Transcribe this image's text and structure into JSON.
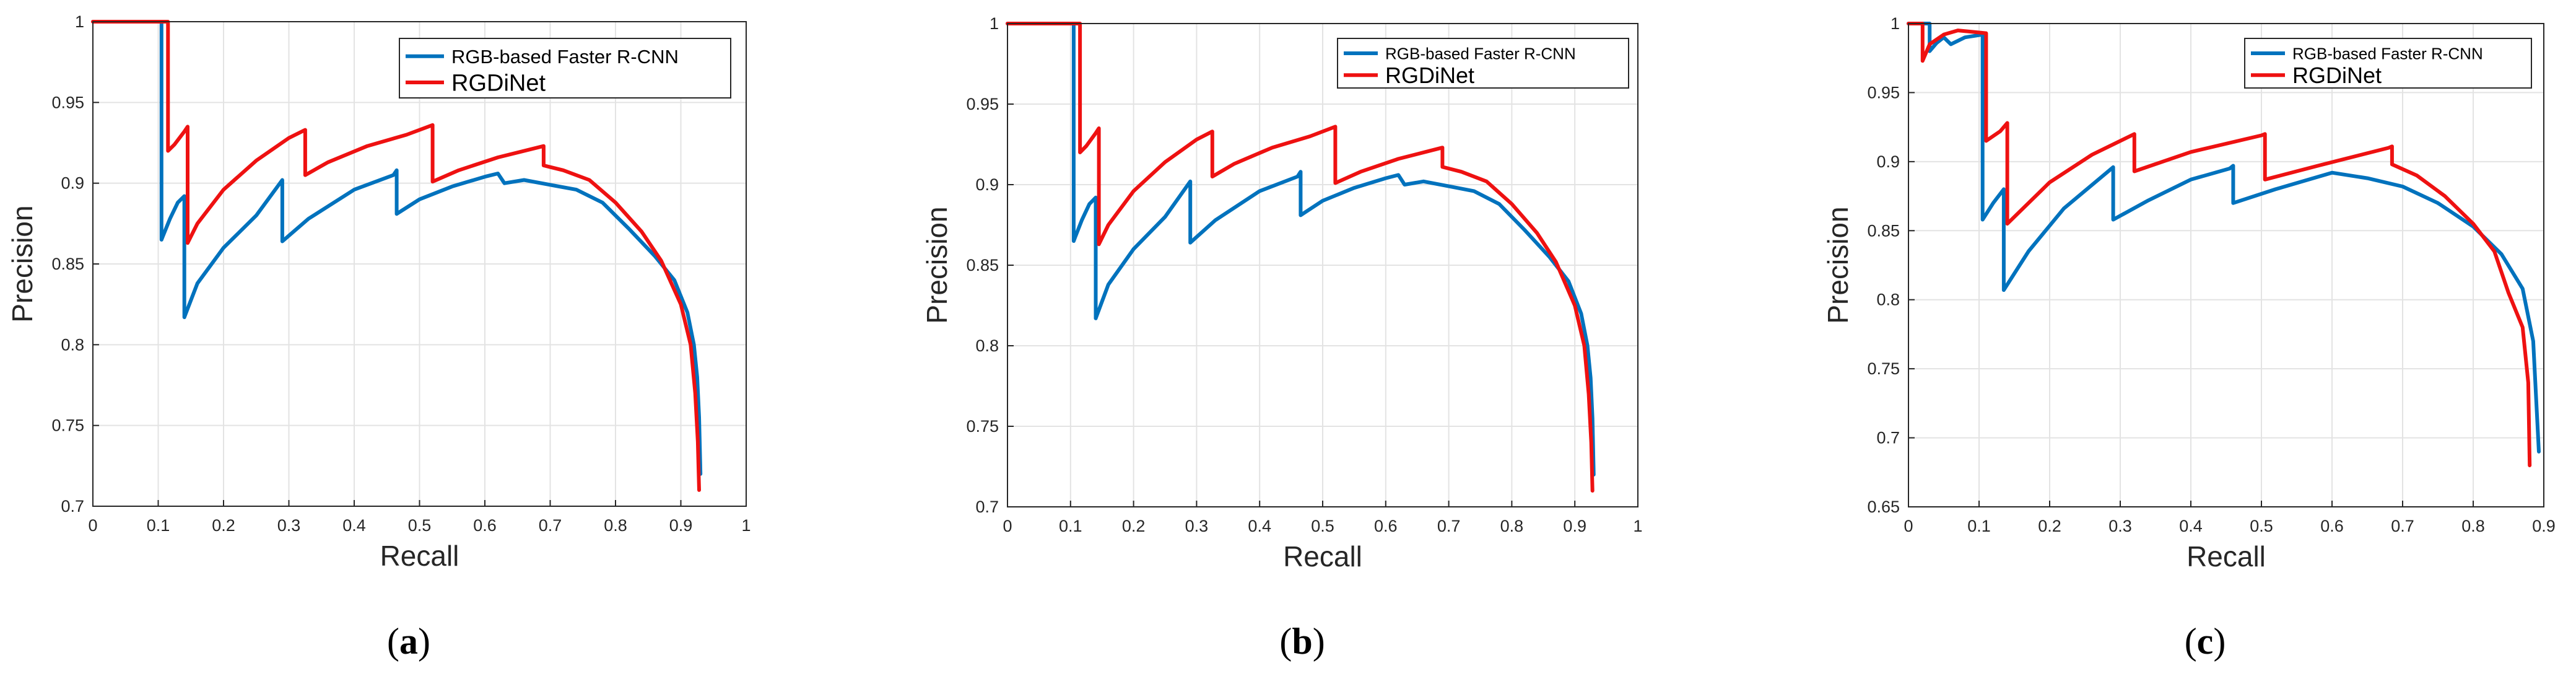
{
  "figure": {
    "captions": [
      "(a)",
      "(b)",
      "(c)"
    ],
    "caption_letters": [
      "a",
      "b",
      "c"
    ]
  },
  "colors": {
    "rgb_faster_rcnn": "#0072BD",
    "rgdinet": "#EE1111",
    "grid": "#e3e3e3",
    "axis": "#262626"
  },
  "chart_data": [
    {
      "type": "line",
      "panel": "a",
      "xlabel": "Recall",
      "ylabel": "Precision",
      "xlim": [
        0,
        1
      ],
      "ylim": [
        0.7,
        1
      ],
      "xticks": [
        0,
        0.1,
        0.2,
        0.3,
        0.4,
        0.5,
        0.6,
        0.7,
        0.8,
        0.9,
        1
      ],
      "xtick_labels": [
        "0",
        "0.1",
        "0.2",
        "0.3",
        "0.4",
        "0.5",
        "0.6",
        "0.7",
        "0.8",
        "0.9",
        "1"
      ],
      "yticks": [
        0.7,
        0.75,
        0.8,
        0.85,
        0.9,
        0.95,
        1
      ],
      "ytick_labels": [
        "0.7",
        "0.75",
        "0.8",
        "0.85",
        "0.9",
        "0.95",
        "1"
      ],
      "grid": true,
      "legend": "top-right",
      "series": [
        {
          "name": "RGB-based Faster R-CNN",
          "x": [
            0,
            0.105,
            0.105,
            0.108,
            0.118,
            0.13,
            0.14,
            0.14,
            0.16,
            0.2,
            0.25,
            0.29,
            0.29,
            0.33,
            0.4,
            0.46,
            0.465,
            0.465,
            0.5,
            0.55,
            0.6,
            0.62,
            0.63,
            0.66,
            0.7,
            0.74,
            0.78,
            0.82,
            0.86,
            0.89,
            0.91,
            0.92,
            0.925,
            0.928,
            0.93
          ],
          "y": [
            1,
            1,
            0.865,
            0.868,
            0.878,
            0.888,
            0.892,
            0.817,
            0.838,
            0.86,
            0.88,
            0.902,
            0.864,
            0.878,
            0.896,
            0.905,
            0.908,
            0.881,
            0.89,
            0.898,
            0.904,
            0.906,
            0.9,
            0.902,
            0.899,
            0.896,
            0.888,
            0.872,
            0.855,
            0.84,
            0.82,
            0.8,
            0.78,
            0.755,
            0.72
          ]
        },
        {
          "name": "RGDiNet",
          "x": [
            0,
            0.115,
            0.115,
            0.125,
            0.14,
            0.145,
            0.145,
            0.16,
            0.2,
            0.25,
            0.3,
            0.325,
            0.325,
            0.36,
            0.42,
            0.48,
            0.52,
            0.52,
            0.56,
            0.62,
            0.68,
            0.69,
            0.69,
            0.72,
            0.76,
            0.8,
            0.84,
            0.87,
            0.9,
            0.915,
            0.922,
            0.926,
            0.928
          ],
          "y": [
            1,
            1,
            0.92,
            0.924,
            0.932,
            0.935,
            0.863,
            0.875,
            0.896,
            0.914,
            0.928,
            0.933,
            0.905,
            0.913,
            0.923,
            0.93,
            0.936,
            0.901,
            0.908,
            0.916,
            0.922,
            0.923,
            0.911,
            0.908,
            0.902,
            0.888,
            0.87,
            0.852,
            0.825,
            0.8,
            0.77,
            0.74,
            0.71
          ]
        }
      ]
    },
    {
      "type": "line",
      "panel": "b",
      "xlabel": "Recall",
      "ylabel": "Precision",
      "xlim": [
        0,
        1
      ],
      "ylim": [
        0.7,
        1
      ],
      "xticks": [
        0,
        0.1,
        0.2,
        0.3,
        0.4,
        0.5,
        0.6,
        0.7,
        0.8,
        0.9,
        1
      ],
      "xtick_labels": [
        "0",
        "0.1",
        "0.2",
        "0.3",
        "0.4",
        "0.5",
        "0.6",
        "0.7",
        "0.8",
        "0.9",
        "1"
      ],
      "yticks": [
        0.7,
        0.75,
        0.8,
        0.85,
        0.9,
        0.95,
        1
      ],
      "ytick_labels": [
        "0.7",
        "0.75",
        "0.8",
        "0.85",
        "0.9",
        "0.95",
        "1"
      ],
      "grid": true,
      "legend": "top-right",
      "series": [
        {
          "name": "RGB-based Faster R-CNN",
          "x": [
            0,
            0.105,
            0.105,
            0.108,
            0.118,
            0.13,
            0.14,
            0.14,
            0.16,
            0.2,
            0.25,
            0.29,
            0.29,
            0.33,
            0.4,
            0.46,
            0.465,
            0.465,
            0.5,
            0.55,
            0.6,
            0.62,
            0.63,
            0.66,
            0.7,
            0.74,
            0.78,
            0.82,
            0.86,
            0.89,
            0.91,
            0.92,
            0.925,
            0.928,
            0.93
          ],
          "y": [
            1,
            1,
            0.865,
            0.868,
            0.878,
            0.888,
            0.892,
            0.817,
            0.838,
            0.86,
            0.88,
            0.902,
            0.864,
            0.878,
            0.896,
            0.905,
            0.908,
            0.881,
            0.89,
            0.898,
            0.904,
            0.906,
            0.9,
            0.902,
            0.899,
            0.896,
            0.888,
            0.872,
            0.855,
            0.84,
            0.82,
            0.8,
            0.78,
            0.755,
            0.72
          ]
        },
        {
          "name": "RGDiNet",
          "x": [
            0,
            0.115,
            0.115,
            0.125,
            0.14,
            0.145,
            0.145,
            0.16,
            0.2,
            0.25,
            0.3,
            0.325,
            0.325,
            0.36,
            0.42,
            0.48,
            0.52,
            0.52,
            0.56,
            0.62,
            0.68,
            0.69,
            0.69,
            0.72,
            0.76,
            0.8,
            0.84,
            0.87,
            0.9,
            0.915,
            0.922,
            0.926,
            0.928
          ],
          "y": [
            1,
            1,
            0.92,
            0.924,
            0.932,
            0.935,
            0.863,
            0.875,
            0.896,
            0.914,
            0.928,
            0.933,
            0.905,
            0.913,
            0.923,
            0.93,
            0.936,
            0.901,
            0.908,
            0.916,
            0.922,
            0.923,
            0.911,
            0.908,
            0.902,
            0.888,
            0.87,
            0.852,
            0.825,
            0.8,
            0.77,
            0.74,
            0.71
          ]
        }
      ]
    },
    {
      "type": "line",
      "panel": "c",
      "xlabel": "Recall",
      "ylabel": "Precision",
      "xlim": [
        0,
        0.9
      ],
      "ylim": [
        0.65,
        1
      ],
      "xticks": [
        0,
        0.1,
        0.2,
        0.3,
        0.4,
        0.5,
        0.6,
        0.7,
        0.8,
        0.9
      ],
      "xtick_labels": [
        "0",
        "0.1",
        "0.2",
        "0.3",
        "0.4",
        "0.5",
        "0.6",
        "0.7",
        "0.8",
        "0.9"
      ],
      "yticks": [
        0.65,
        0.7,
        0.75,
        0.8,
        0.85,
        0.9,
        0.95,
        1
      ],
      "ytick_labels": [
        "0.65",
        "0.7",
        "0.75",
        "0.8",
        "0.85",
        "0.9",
        "0.95",
        "1"
      ],
      "grid": true,
      "legend": "top-right",
      "series": [
        {
          "name": "RGB-based Faster R-CNN",
          "x": [
            0,
            0.03,
            0.03,
            0.04,
            0.05,
            0.06,
            0.08,
            0.105,
            0.105,
            0.12,
            0.135,
            0.135,
            0.17,
            0.22,
            0.29,
            0.29,
            0.34,
            0.4,
            0.455,
            0.46,
            0.46,
            0.52,
            0.6,
            0.65,
            0.7,
            0.75,
            0.8,
            0.84,
            0.87,
            0.885,
            0.893
          ],
          "y": [
            1,
            1,
            0.98,
            0.986,
            0.99,
            0.985,
            0.99,
            0.992,
            0.858,
            0.87,
            0.88,
            0.807,
            0.835,
            0.866,
            0.896,
            0.858,
            0.872,
            0.887,
            0.895,
            0.897,
            0.87,
            0.88,
            0.892,
            0.888,
            0.882,
            0.87,
            0.853,
            0.833,
            0.808,
            0.77,
            0.69
          ]
        },
        {
          "name": "RGDiNet",
          "x": [
            0,
            0.02,
            0.02,
            0.03,
            0.05,
            0.07,
            0.11,
            0.11,
            0.13,
            0.14,
            0.14,
            0.2,
            0.26,
            0.32,
            0.32,
            0.4,
            0.5,
            0.505,
            0.505,
            0.58,
            0.68,
            0.685,
            0.685,
            0.72,
            0.76,
            0.8,
            0.83,
            0.85,
            0.87,
            0.878,
            0.88
          ],
          "y": [
            1,
            1,
            0.973,
            0.985,
            0.992,
            0.995,
            0.993,
            0.915,
            0.922,
            0.928,
            0.855,
            0.885,
            0.905,
            0.92,
            0.893,
            0.907,
            0.919,
            0.92,
            0.887,
            0.897,
            0.91,
            0.911,
            0.898,
            0.89,
            0.875,
            0.855,
            0.835,
            0.805,
            0.78,
            0.74,
            0.68
          ]
        }
      ]
    }
  ]
}
